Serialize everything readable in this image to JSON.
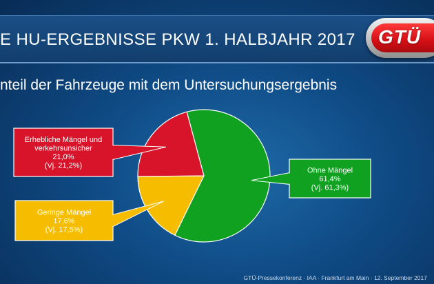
{
  "header": {
    "title": "E HU-ERGEBNISSE PKW 1. HALBJAHR 2017",
    "subtitle": "nteil der Fahrzeuge mit dem Untersuchungsergebnis",
    "logo_text": "GTÜ"
  },
  "footer": {
    "text": "GTÜ-Pressekonferenz · IAA · Frankfurt am Main · 12. September 2017"
  },
  "chart_data": {
    "type": "pie",
    "title": "",
    "slices": [
      {
        "label_lines": [
          "Ohne Mängel"
        ],
        "value": 61.4,
        "value_text": "61,4%",
        "prev_text": "(Vj. 61,3%)",
        "color": "#0fa11f",
        "callout_color": "#0fa11f"
      },
      {
        "label_lines": [
          "Geringe Mängel"
        ],
        "value": 17.6,
        "value_text": "17,6%",
        "prev_text": "(Vj. 17,5%)",
        "color": "#f6bd00",
        "callout_color": "#f6bd00"
      },
      {
        "label_lines": [
          "Erhebliche Mängel und",
          "verkehrsunsicher"
        ],
        "value": 21.0,
        "value_text": "21,0%",
        "prev_text": "(Vj. 21,2%)",
        "color": "#d7142a",
        "callout_color": "#d7142a"
      }
    ],
    "start_angle_deg": -15
  }
}
